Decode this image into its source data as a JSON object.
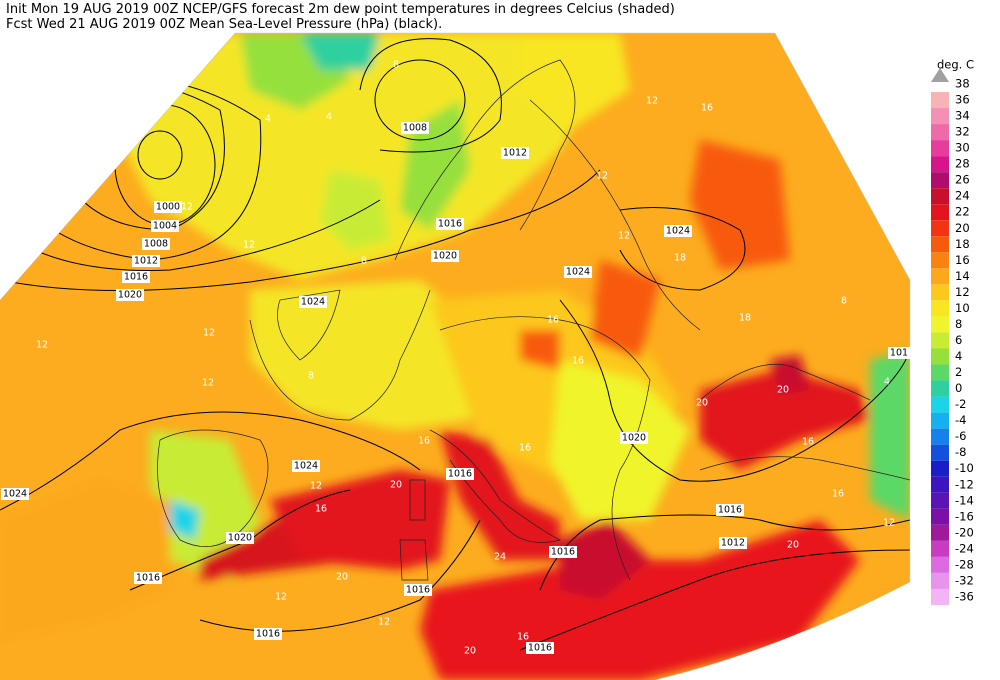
{
  "header": {
    "lines": [
      "Init  Mon 19 AUG 2019 00Z  NCEP/GFS forecast 2m dew point temperatures in degrees Celcius (shaded)",
      "Fcst Wed 21 AUG 2019 00Z  Mean Sea-Level Pressure (hPa) (black)."
    ]
  },
  "legend": {
    "title": "deg. C",
    "top_value": 38,
    "top_color": "#a0a0a0",
    "levels": [
      {
        "value": 36,
        "color": "#f8b4b4"
      },
      {
        "value": 34,
        "color": "#f490b4"
      },
      {
        "value": 32,
        "color": "#ee6aa8"
      },
      {
        "value": 30,
        "color": "#e83c9c"
      },
      {
        "value": 28,
        "color": "#d6148c"
      },
      {
        "value": 26,
        "color": "#b00c6c"
      },
      {
        "value": 24,
        "color": "#c8102e"
      },
      {
        "value": 22,
        "color": "#e2141e"
      },
      {
        "value": 20,
        "color": "#f43214"
      },
      {
        "value": 18,
        "color": "#f85a0c"
      },
      {
        "value": 16,
        "color": "#fa8212"
      },
      {
        "value": 14,
        "color": "#fca81c"
      },
      {
        "value": 12,
        "color": "#fcc81e"
      },
      {
        "value": 10,
        "color": "#f8e620"
      },
      {
        "value": 8,
        "color": "#f0f42c"
      },
      {
        "value": 6,
        "color": "#c8ec34"
      },
      {
        "value": 4,
        "color": "#96e03c"
      },
      {
        "value": 2,
        "color": "#5cd866"
      },
      {
        "value": 0,
        "color": "#2ed0a0"
      },
      {
        "value": -2,
        "color": "#1cd4e8"
      },
      {
        "value": -4,
        "color": "#16b0f0"
      },
      {
        "value": -6,
        "color": "#1680ec"
      },
      {
        "value": -8,
        "color": "#1450e0"
      },
      {
        "value": -10,
        "color": "#1a1ec8"
      },
      {
        "value": -12,
        "color": "#3c14c0"
      },
      {
        "value": -14,
        "color": "#5a14b4"
      },
      {
        "value": -16,
        "color": "#7a10a8"
      },
      {
        "value": -20,
        "color": "#a0189c"
      },
      {
        "value": -24,
        "color": "#c83cc4"
      },
      {
        "value": -28,
        "color": "#dc6ae0"
      },
      {
        "value": -32,
        "color": "#e894ec"
      },
      {
        "value": -36,
        "color": "#f2b4f4"
      }
    ]
  },
  "map": {
    "pressure_labels": [
      1008,
      1012,
      1016,
      1020,
      1024,
      1024,
      1024,
      1000,
      1004,
      1008,
      1012,
      1016,
      1020,
      1024,
      1024,
      1020,
      1016,
      1016,
      1016,
      1016,
      1016,
      1012,
      1020,
      1016,
      1016,
      101
    ],
    "dewpoint_labels": [
      12,
      16,
      12,
      12,
      18,
      16,
      16,
      18,
      20,
      20,
      16,
      12,
      12,
      12,
      8,
      12,
      8,
      4,
      8,
      4,
      12,
      16,
      16,
      20,
      16,
      12,
      20,
      24,
      12,
      12,
      20,
      16,
      8,
      16,
      4,
      12,
      20
    ]
  }
}
